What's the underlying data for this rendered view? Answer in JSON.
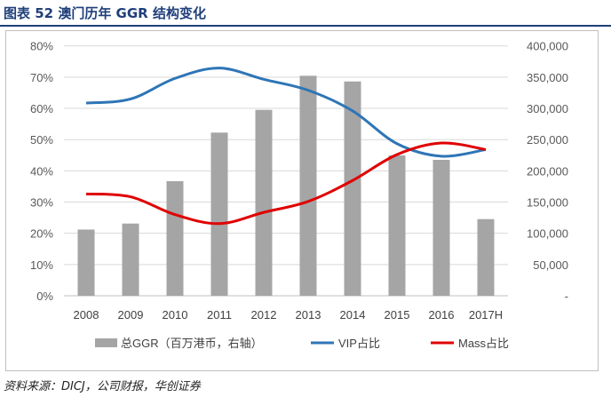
{
  "title": "图表  52    澳门历年 GGR 结构变化",
  "source": "资料来源：DICJ，公司财报，华创证券",
  "colors": {
    "bar": "#a5a5a5",
    "vip": "#2e75b6",
    "mass": "#e00000",
    "grid": "#d9d9d9",
    "title": "#1f3f7a"
  },
  "chart_data": {
    "type": "bar+line",
    "categories": [
      "2008",
      "2009",
      "2010",
      "2011",
      "2012",
      "2013",
      "2014",
      "2015",
      "2016",
      "2017H"
    ],
    "left_axis": {
      "ylim": [
        0,
        80
      ],
      "ticks": [
        "0%",
        "10%",
        "20%",
        "30%",
        "40%",
        "50%",
        "60%",
        "70%",
        "80%"
      ]
    },
    "right_axis": {
      "ylim": [
        0,
        400000
      ],
      "ticks": [
        "-",
        "50,000",
        "100,000",
        "150,000",
        "200,000",
        "250,000",
        "300,000",
        "350,000",
        "400,000"
      ]
    },
    "grid": true,
    "legend_position": "bottom",
    "series": [
      {
        "name": "总GGR（百万港币，右轴）",
        "type": "bar",
        "axis": "right",
        "values": [
          106000,
          115600,
          183400,
          261200,
          297600,
          352200,
          343100,
          224700,
          217600,
          122700
        ]
      },
      {
        "name": "VIP占比",
        "type": "line",
        "axis": "left",
        "values": [
          61.7,
          63.0,
          69.6,
          72.9,
          69.3,
          65.8,
          59.2,
          48.7,
          44.7,
          46.8
        ]
      },
      {
        "name": "Mass占比",
        "type": "line",
        "axis": "left",
        "values": [
          32.6,
          31.7,
          26.0,
          23.1,
          26.7,
          30.2,
          36.9,
          45.2,
          48.9,
          46.8
        ]
      }
    ]
  }
}
